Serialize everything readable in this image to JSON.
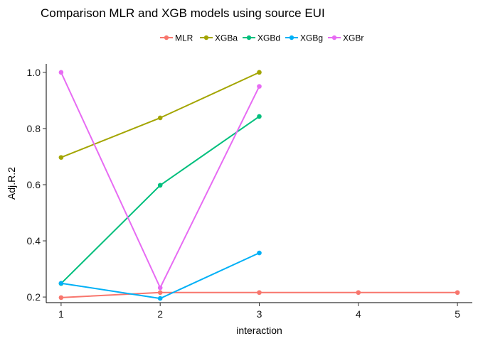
{
  "chart_data": {
    "type": "line",
    "title": "Comparison MLR and XGB models using source EUI",
    "xlabel": "interaction",
    "ylabel": "Adj.R.2",
    "xlim": [
      0.85,
      5.15
    ],
    "ylim": [
      0.18,
      1.03
    ],
    "x_ticks": [
      1,
      2,
      3,
      4,
      5
    ],
    "y_ticks": [
      0.2,
      0.4,
      0.6,
      0.8,
      1.0
    ],
    "x_tick_labels": [
      "1",
      "2",
      "3",
      "4",
      "5"
    ],
    "y_tick_labels": [
      "0.2",
      "0.4",
      "0.6",
      "0.8",
      "1.0"
    ],
    "grid": false,
    "legend_position": "top",
    "series": [
      {
        "name": "MLR",
        "color": "#F8766D",
        "x": [
          1,
          2,
          3,
          4,
          5
        ],
        "values": [
          0.198,
          0.216,
          0.216,
          0.216,
          0.216
        ]
      },
      {
        "name": "XGBa",
        "color": "#A3A500",
        "x": [
          1,
          2,
          3
        ],
        "values": [
          0.697,
          0.838,
          1.0
        ]
      },
      {
        "name": "XGBd",
        "color": "#00BF7D",
        "x": [
          1,
          2,
          3
        ],
        "values": [
          0.248,
          0.598,
          0.843
        ]
      },
      {
        "name": "XGBg",
        "color": "#00B0F6",
        "x": [
          1,
          2,
          3
        ],
        "values": [
          0.249,
          0.195,
          0.357
        ]
      },
      {
        "name": "XGBr",
        "color": "#E76BF3",
        "x": [
          1,
          2,
          3
        ],
        "values": [
          1.0,
          0.233,
          0.95
        ]
      }
    ]
  }
}
